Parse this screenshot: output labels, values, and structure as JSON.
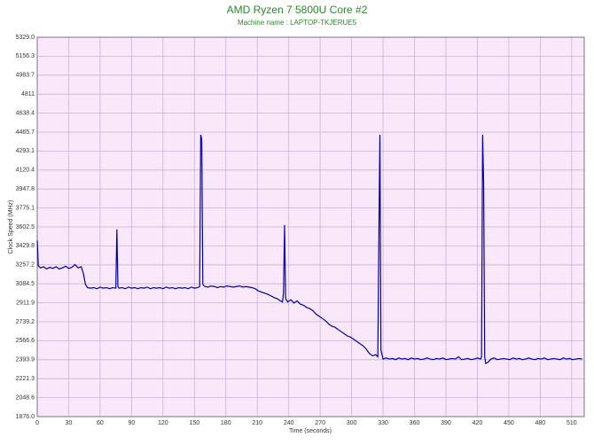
{
  "chart_data": {
    "type": "line",
    "title": "AMD Ryzen 7 5800U Core #2",
    "subtitle": "Machine name : LAPTOP-TKJERUE5",
    "x_label": "Time (seconds)",
    "y_label": "Clock Speed (MHz)",
    "xlim": [
      0,
      522
    ],
    "xticks": [
      0,
      30,
      60,
      90,
      120,
      150,
      180,
      210,
      240,
      270,
      300,
      330,
      360,
      390,
      420,
      450,
      480,
      510
    ],
    "ylim": [
      1876,
      5329
    ],
    "yticks": [
      {
        "value": 1876,
        "label": "1876.0"
      },
      2048.6,
      2221.3,
      2393.9,
      2566.6,
      2739.2,
      2911.9,
      3084.5,
      3257.2,
      3429.8,
      3602.5,
      3775.1,
      3947.8,
      4120.4,
      4293.1,
      4465.7,
      4638.4,
      4811.0,
      4983.7,
      5156.3,
      {
        "value": 5329,
        "label": "5329.0"
      }
    ],
    "grid": true,
    "x": [
      0,
      1,
      3,
      6,
      9,
      12,
      15,
      18,
      21,
      24,
      27,
      30,
      33,
      36,
      39,
      42,
      44,
      46,
      48,
      51,
      54,
      57,
      60,
      63,
      66,
      69,
      72,
      75,
      76,
      77,
      78,
      81,
      84,
      87,
      90,
      93,
      96,
      99,
      102,
      105,
      108,
      111,
      114,
      117,
      120,
      123,
      126,
      129,
      132,
      135,
      138,
      141,
      144,
      147,
      150,
      153,
      155,
      156,
      157,
      158,
      160,
      163,
      166,
      169,
      172,
      175,
      178,
      181,
      184,
      187,
      190,
      193,
      196,
      199,
      202,
      205,
      208,
      211,
      214,
      217,
      220,
      223,
      226,
      229,
      232,
      234,
      235,
      236,
      237,
      239,
      242,
      245,
      248,
      251,
      254,
      257,
      260,
      263,
      266,
      269,
      272,
      275,
      278,
      281,
      284,
      287,
      290,
      293,
      296,
      299,
      302,
      305,
      308,
      311,
      314,
      317,
      320,
      323,
      325,
      326,
      327,
      328,
      330,
      333,
      336,
      339,
      342,
      345,
      348,
      351,
      354,
      357,
      360,
      363,
      366,
      369,
      372,
      375,
      378,
      381,
      384,
      387,
      390,
      393,
      396,
      399,
      402,
      405,
      408,
      411,
      414,
      417,
      420,
      423,
      424,
      425,
      426,
      427,
      428,
      430,
      433,
      436,
      439,
      442,
      445,
      448,
      451,
      454,
      457,
      460,
      463,
      466,
      469,
      472,
      475,
      478,
      481,
      484,
      487,
      490,
      493,
      496,
      499,
      502,
      505,
      508,
      511,
      514,
      517,
      520
    ],
    "series": [
      {
        "name": "Core #2",
        "color": "#0000a8",
        "values": [
          3480,
          3250,
          3230,
          3240,
          3220,
          3235,
          3225,
          3240,
          3220,
          3230,
          3245,
          3225,
          3235,
          3260,
          3230,
          3240,
          3180,
          3080,
          3050,
          3045,
          3050,
          3040,
          3055,
          3045,
          3050,
          3040,
          3050,
          3045,
          3580,
          3060,
          3045,
          3050,
          3040,
          3055,
          3045,
          3050,
          3040,
          3050,
          3045,
          3055,
          3040,
          3050,
          3045,
          3050,
          3040,
          3055,
          3045,
          3050,
          3040,
          3050,
          3045,
          3050,
          3040,
          3055,
          3045,
          3050,
          3060,
          4440,
          4400,
          3080,
          3060,
          3055,
          3065,
          3060,
          3050,
          3060,
          3055,
          3065,
          3060,
          3055,
          3060,
          3065,
          3055,
          3060,
          3055,
          3050,
          3040,
          3020,
          3010,
          3000,
          2990,
          2975,
          2960,
          2950,
          2930,
          2920,
          3000,
          3620,
          2950,
          2920,
          2940,
          2910,
          2930,
          2900,
          2890,
          2870,
          2860,
          2840,
          2810,
          2790,
          2770,
          2750,
          2720,
          2700,
          2690,
          2670,
          2650,
          2630,
          2610,
          2600,
          2580,
          2560,
          2540,
          2520,
          2490,
          2450,
          2430,
          2440,
          2420,
          3500,
          4440,
          2480,
          2400,
          2410,
          2400,
          2405,
          2395,
          2410,
          2400,
          2405,
          2395,
          2410,
          2400,
          2405,
          2395,
          2400,
          2410,
          2400,
          2395,
          2405,
          2400,
          2410,
          2395,
          2400,
          2405,
          2400,
          2420,
          2395,
          2400,
          2405,
          2395,
          2400,
          2410,
          2400,
          2420,
          4440,
          4000,
          2420,
          2360,
          2370,
          2400,
          2410,
          2395,
          2400,
          2405,
          2400,
          2395,
          2410,
          2400,
          2405,
          2395,
          2400,
          2410,
          2400,
          2395,
          2405,
          2400,
          2410,
          2395,
          2400,
          2405,
          2400,
          2395,
          2410,
          2400,
          2405,
          2395,
          2400,
          2405,
          2400
        ]
      }
    ]
  }
}
